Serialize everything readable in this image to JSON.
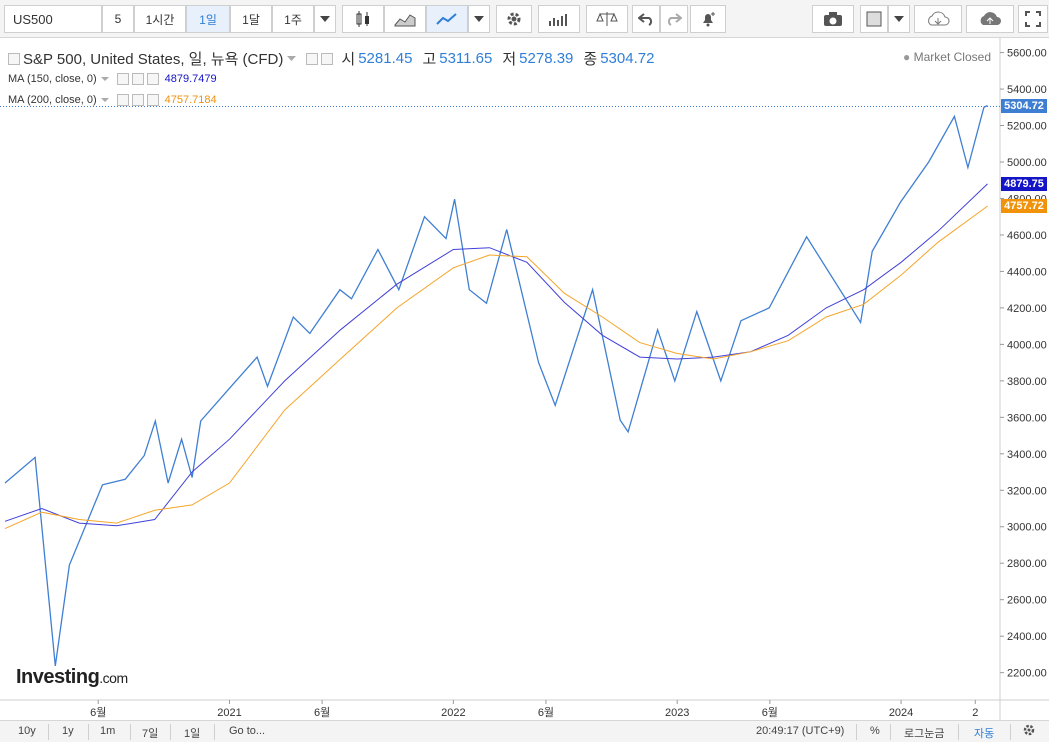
{
  "toolbar": {
    "symbol": "US500",
    "intervals": [
      "5",
      "1시간",
      "1일",
      "1달",
      "1주"
    ],
    "active_interval": "1일"
  },
  "legend": {
    "title": "S&P 500, United States, 일, 뉴욕 (CFD)",
    "open_label": "시",
    "open": "5281.45",
    "high_label": "고",
    "high": "5311.65",
    "low_label": "저",
    "low": "5278.39",
    "close_label": "종",
    "close": "5304.72",
    "ma150_label": "MA (150, close, 0)",
    "ma150_value": "4879.7479",
    "ma200_label": "MA (200, close, 0)",
    "ma200_value": "4757.7184",
    "market_status": "Market Closed"
  },
  "price_labels": {
    "last": "5304.72",
    "ma150": "4879.75",
    "ma200": "4757.72"
  },
  "colors": {
    "price_line": "#3f7fd3",
    "ma150": "#4040d8",
    "ma200": "#f5a52a",
    "last_label_bg": "#3f7fd3",
    "ma150_label_bg": "#1515c8",
    "ma200_label_bg": "#f0920a"
  },
  "chart_data": {
    "type": "line",
    "y_ticks": [
      2200,
      2400,
      2600,
      2800,
      3000,
      3200,
      3400,
      3600,
      3800,
      4000,
      4200,
      4400,
      4600,
      4800,
      5000,
      5200,
      5400,
      5600
    ],
    "x_ticks": [
      "6월",
      "2021",
      "6월",
      "2022",
      "6월",
      "2023",
      "6월",
      "2024",
      "2"
    ],
    "ylim": [
      2050,
      5680
    ],
    "series": [
      {
        "name": "S&P 500",
        "x": [
          "2020-01-01",
          "2020-02-19",
          "2020-03-23",
          "2020-04-15",
          "2020-06-08",
          "2020-07-15",
          "2020-08-15",
          "2020-09-02",
          "2020-09-23",
          "2020-10-15",
          "2020-11-01",
          "2020-11-15",
          "2020-12-31",
          "2021-02-15",
          "2021-03-04",
          "2021-04-15",
          "2021-05-12",
          "2021-06-30",
          "2021-07-19",
          "2021-08-31",
          "2021-10-04",
          "2021-11-15",
          "2021-12-20",
          "2022-01-03",
          "2022-01-27",
          "2022-02-24",
          "2022-03-29",
          "2022-05-20",
          "2022-06-16",
          "2022-08-16",
          "2022-09-30",
          "2022-10-13",
          "2022-11-30",
          "2022-12-28",
          "2023-02-02",
          "2023-03-13",
          "2023-04-15",
          "2023-05-31",
          "2023-07-31",
          "2023-10-27",
          "2023-11-15",
          "2023-12-31",
          "2024-02-15",
          "2024-03-28",
          "2024-04-19",
          "2024-05-15",
          "2024-05-21"
        ],
        "y": [
          3240,
          3380,
          2237,
          2790,
          3230,
          3260,
          3390,
          3580,
          3240,
          3480,
          3270,
          3580,
          3756,
          3930,
          3770,
          4150,
          4060,
          4300,
          4250,
          4520,
          4300,
          4700,
          4580,
          4796,
          4300,
          4225,
          4630,
          3900,
          3666,
          4300,
          3585,
          3520,
          4080,
          3800,
          4180,
          3800,
          4130,
          4200,
          4590,
          4120,
          4510,
          4780,
          5000,
          5250,
          4970,
          5300,
          5310
        ]
      },
      {
        "name": "MA (150, close, 0)",
        "x": [
          "2020-01-01",
          "2020-03-01",
          "2020-05-01",
          "2020-07-01",
          "2020-09-01",
          "2020-11-01",
          "2021-01-01",
          "2021-04-01",
          "2021-07-01",
          "2021-10-01",
          "2022-01-01",
          "2022-03-01",
          "2022-05-01",
          "2022-07-01",
          "2022-09-01",
          "2022-11-01",
          "2023-01-01",
          "2023-03-01",
          "2023-05-01",
          "2023-07-01",
          "2023-09-01",
          "2023-11-01",
          "2024-01-01",
          "2024-03-01",
          "2024-05-21"
        ],
        "y": [
          3030,
          3100,
          3020,
          3005,
          3040,
          3300,
          3480,
          3800,
          4080,
          4330,
          4520,
          4530,
          4450,
          4230,
          4050,
          3930,
          3920,
          3930,
          3960,
          4050,
          4200,
          4300,
          4450,
          4620,
          4880
        ]
      },
      {
        "name": "MA (200, close, 0)",
        "x": [
          "2020-01-01",
          "2020-03-01",
          "2020-05-01",
          "2020-07-01",
          "2020-09-01",
          "2020-11-01",
          "2021-01-01",
          "2021-04-01",
          "2021-07-01",
          "2021-10-01",
          "2022-01-01",
          "2022-03-01",
          "2022-05-01",
          "2022-07-01",
          "2022-09-01",
          "2022-11-01",
          "2023-01-01",
          "2023-03-01",
          "2023-05-01",
          "2023-07-01",
          "2023-09-01",
          "2023-11-01",
          "2024-01-01",
          "2024-03-01",
          "2024-05-21"
        ],
        "y": [
          2990,
          3080,
          3040,
          3020,
          3090,
          3120,
          3240,
          3640,
          3920,
          4200,
          4420,
          4490,
          4480,
          4280,
          4150,
          4010,
          3950,
          3920,
          3960,
          4020,
          4150,
          4220,
          4380,
          4560,
          4758
        ]
      }
    ]
  },
  "bottom_bar": {
    "ranges": [
      "10y",
      "1y",
      "1m",
      "7일",
      "1일"
    ],
    "goto": "Go to...",
    "time": "20:49:17 (UTC+9)",
    "percent": "%",
    "log": "로그눈금",
    "auto": "자동"
  }
}
